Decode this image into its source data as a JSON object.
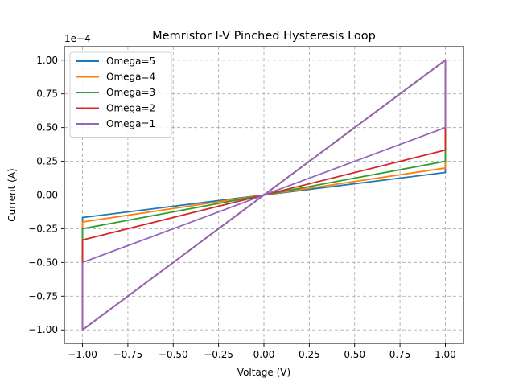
{
  "chart_data": {
    "type": "line",
    "title": "Memristor I-V Pinched Hysteresis Loop",
    "xlabel": "Voltage (V)",
    "ylabel": "Current (A)",
    "y_scale_label": "1e−4",
    "xlim": [
      -1.1,
      1.1
    ],
    "ylim": [
      -1.1,
      1.1
    ],
    "x_ticks": [
      -1.0,
      -0.75,
      -0.5,
      -0.25,
      0.0,
      0.25,
      0.5,
      0.75,
      1.0
    ],
    "x_tick_labels": [
      "−1.00",
      "−0.75",
      "−0.50",
      "−0.25",
      "0.00",
      "0.25",
      "0.50",
      "0.75",
      "1.00"
    ],
    "y_ticks": [
      -1.0,
      -0.75,
      -0.5,
      -0.25,
      0.0,
      0.25,
      0.5,
      0.75,
      1.0
    ],
    "y_tick_labels": [
      "−1.00",
      "−0.75",
      "−0.50",
      "−0.25",
      "0.00",
      "0.25",
      "0.50",
      "0.75",
      "1.00"
    ],
    "grid": true,
    "legend_position": "top-left",
    "series": [
      {
        "name": "Omega=5",
        "color": "#1f77b4",
        "x": [
          -1.0,
          1.0,
          1.0,
          -1.0,
          -1.0
        ],
        "y": [
          -1.0,
          1.0,
          0.167,
          -0.167,
          -1.0
        ]
      },
      {
        "name": "Omega=4",
        "color": "#ff7f0e",
        "x": [
          -1.0,
          1.0,
          1.0,
          -1.0,
          -1.0
        ],
        "y": [
          -1.0,
          1.0,
          0.2,
          -0.2,
          -1.0
        ]
      },
      {
        "name": "Omega=3",
        "color": "#2ca02c",
        "x": [
          -1.0,
          1.0,
          1.0,
          -1.0,
          -1.0
        ],
        "y": [
          -1.0,
          1.0,
          0.25,
          -0.25,
          -1.0
        ]
      },
      {
        "name": "Omega=2",
        "color": "#d62728",
        "x": [
          -1.0,
          1.0,
          1.0,
          -1.0,
          -1.0
        ],
        "y": [
          -1.0,
          1.0,
          0.333,
          -0.333,
          -1.0
        ]
      },
      {
        "name": "Omega=1",
        "color": "#9467bd",
        "x": [
          -1.0,
          1.0,
          1.0,
          -1.0,
          -1.0
        ],
        "y": [
          -1.0,
          1.0,
          0.5,
          -0.5,
          -1.0
        ]
      }
    ]
  }
}
